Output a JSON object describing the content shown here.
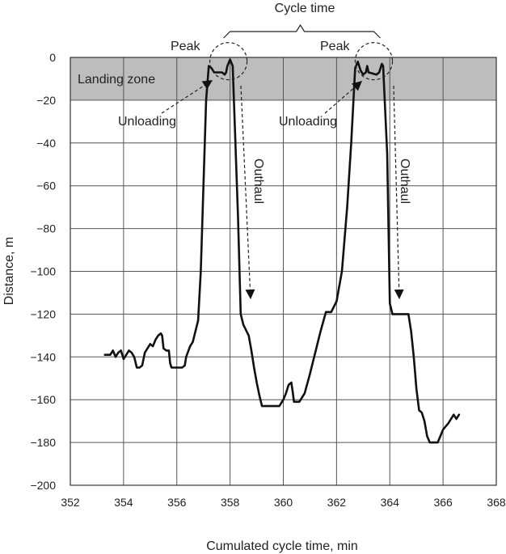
{
  "chart_data": {
    "type": "line",
    "title": "",
    "xlabel": "Cumulated cycle time, min",
    "ylabel": "Distance, m",
    "xlim": [
      352,
      368
    ],
    "ylim": [
      -200,
      0
    ],
    "xticks": [
      352,
      354,
      356,
      358,
      360,
      362,
      364,
      366,
      368
    ],
    "yticks": [
      0,
      -20,
      -40,
      -60,
      -80,
      -100,
      -120,
      -140,
      -160,
      -180,
      -200
    ],
    "grid": true,
    "legend": "none",
    "colors": {
      "line": "#111111",
      "band": "#bdbdbd",
      "grid": "#555555"
    },
    "band": {
      "label": "Landing zone",
      "y_from": -20,
      "y_to": 0
    },
    "series": [
      {
        "name": "",
        "points": [
          [
            353.3,
            -139
          ],
          [
            353.5,
            -139
          ],
          [
            353.6,
            -137
          ],
          [
            353.7,
            -140
          ],
          [
            353.8,
            -138
          ],
          [
            353.9,
            -137
          ],
          [
            354.0,
            -141
          ],
          [
            354.1,
            -139
          ],
          [
            354.2,
            -137
          ],
          [
            354.3,
            -138
          ],
          [
            354.4,
            -140
          ],
          [
            354.5,
            -145
          ],
          [
            354.6,
            -145
          ],
          [
            354.7,
            -144
          ],
          [
            354.8,
            -138
          ],
          [
            354.9,
            -136
          ],
          [
            355.0,
            -134
          ],
          [
            355.1,
            -135
          ],
          [
            355.2,
            -132
          ],
          [
            355.3,
            -130
          ],
          [
            355.4,
            -129
          ],
          [
            355.45,
            -130
          ],
          [
            355.5,
            -136
          ],
          [
            355.6,
            -137
          ],
          [
            355.7,
            -137
          ],
          [
            355.75,
            -143
          ],
          [
            355.8,
            -145
          ],
          [
            356.0,
            -145
          ],
          [
            356.2,
            -145
          ],
          [
            356.3,
            -144
          ],
          [
            356.35,
            -140
          ],
          [
            356.5,
            -135
          ],
          [
            356.6,
            -133
          ],
          [
            356.7,
            -128
          ],
          [
            356.8,
            -123
          ],
          [
            356.9,
            -100
          ],
          [
            357.0,
            -60
          ],
          [
            357.1,
            -20
          ],
          [
            357.2,
            -4
          ],
          [
            357.3,
            -5
          ],
          [
            357.4,
            -7
          ],
          [
            357.7,
            -7
          ],
          [
            357.8,
            -8
          ],
          [
            357.85,
            -7
          ],
          [
            357.9,
            -4
          ],
          [
            358.0,
            -1
          ],
          [
            358.1,
            -4
          ],
          [
            358.3,
            -75
          ],
          [
            358.4,
            -120
          ],
          [
            358.5,
            -125
          ],
          [
            358.7,
            -130
          ],
          [
            358.8,
            -137
          ],
          [
            358.9,
            -145
          ],
          [
            359.0,
            -152
          ],
          [
            359.1,
            -158
          ],
          [
            359.2,
            -163
          ],
          [
            359.5,
            -163
          ],
          [
            359.85,
            -163
          ],
          [
            360.0,
            -160
          ],
          [
            360.1,
            -157
          ],
          [
            360.2,
            -153
          ],
          [
            360.3,
            -152
          ],
          [
            360.35,
            -156
          ],
          [
            360.4,
            -161
          ],
          [
            360.6,
            -161
          ],
          [
            360.8,
            -157
          ],
          [
            361.0,
            -148
          ],
          [
            361.2,
            -138
          ],
          [
            361.4,
            -128
          ],
          [
            361.6,
            -119
          ],
          [
            361.8,
            -119
          ],
          [
            362.0,
            -114
          ],
          [
            362.2,
            -100
          ],
          [
            362.4,
            -70
          ],
          [
            362.55,
            -40
          ],
          [
            362.7,
            -5
          ],
          [
            362.8,
            -2
          ],
          [
            362.9,
            -6
          ],
          [
            363.0,
            -8
          ],
          [
            363.1,
            -7
          ],
          [
            363.15,
            -4
          ],
          [
            363.2,
            -7
          ],
          [
            363.5,
            -8
          ],
          [
            363.6,
            -7
          ],
          [
            363.7,
            -3
          ],
          [
            363.75,
            -4
          ],
          [
            363.9,
            -45
          ],
          [
            364.0,
            -115
          ],
          [
            364.1,
            -120
          ],
          [
            364.7,
            -120
          ],
          [
            364.8,
            -128
          ],
          [
            364.9,
            -140
          ],
          [
            365.0,
            -155
          ],
          [
            365.1,
            -165
          ],
          [
            365.2,
            -166
          ],
          [
            365.3,
            -170
          ],
          [
            365.4,
            -177
          ],
          [
            365.5,
            -180
          ],
          [
            365.8,
            -180
          ],
          [
            365.9,
            -177
          ],
          [
            366.0,
            -174
          ],
          [
            366.2,
            -171
          ],
          [
            366.4,
            -167
          ],
          [
            366.5,
            -169
          ],
          [
            366.6,
            -167
          ]
        ]
      }
    ],
    "annotations": {
      "landing_zone": "Landing zone",
      "cycle_time": "Cycle time",
      "peak_1": "Peak",
      "peak_2": "Peak",
      "unloading_1": "Unloading",
      "unloading_2": "Unloading",
      "outhaul_1": "Outhaul",
      "outhaul_2": "Outhaul"
    }
  }
}
